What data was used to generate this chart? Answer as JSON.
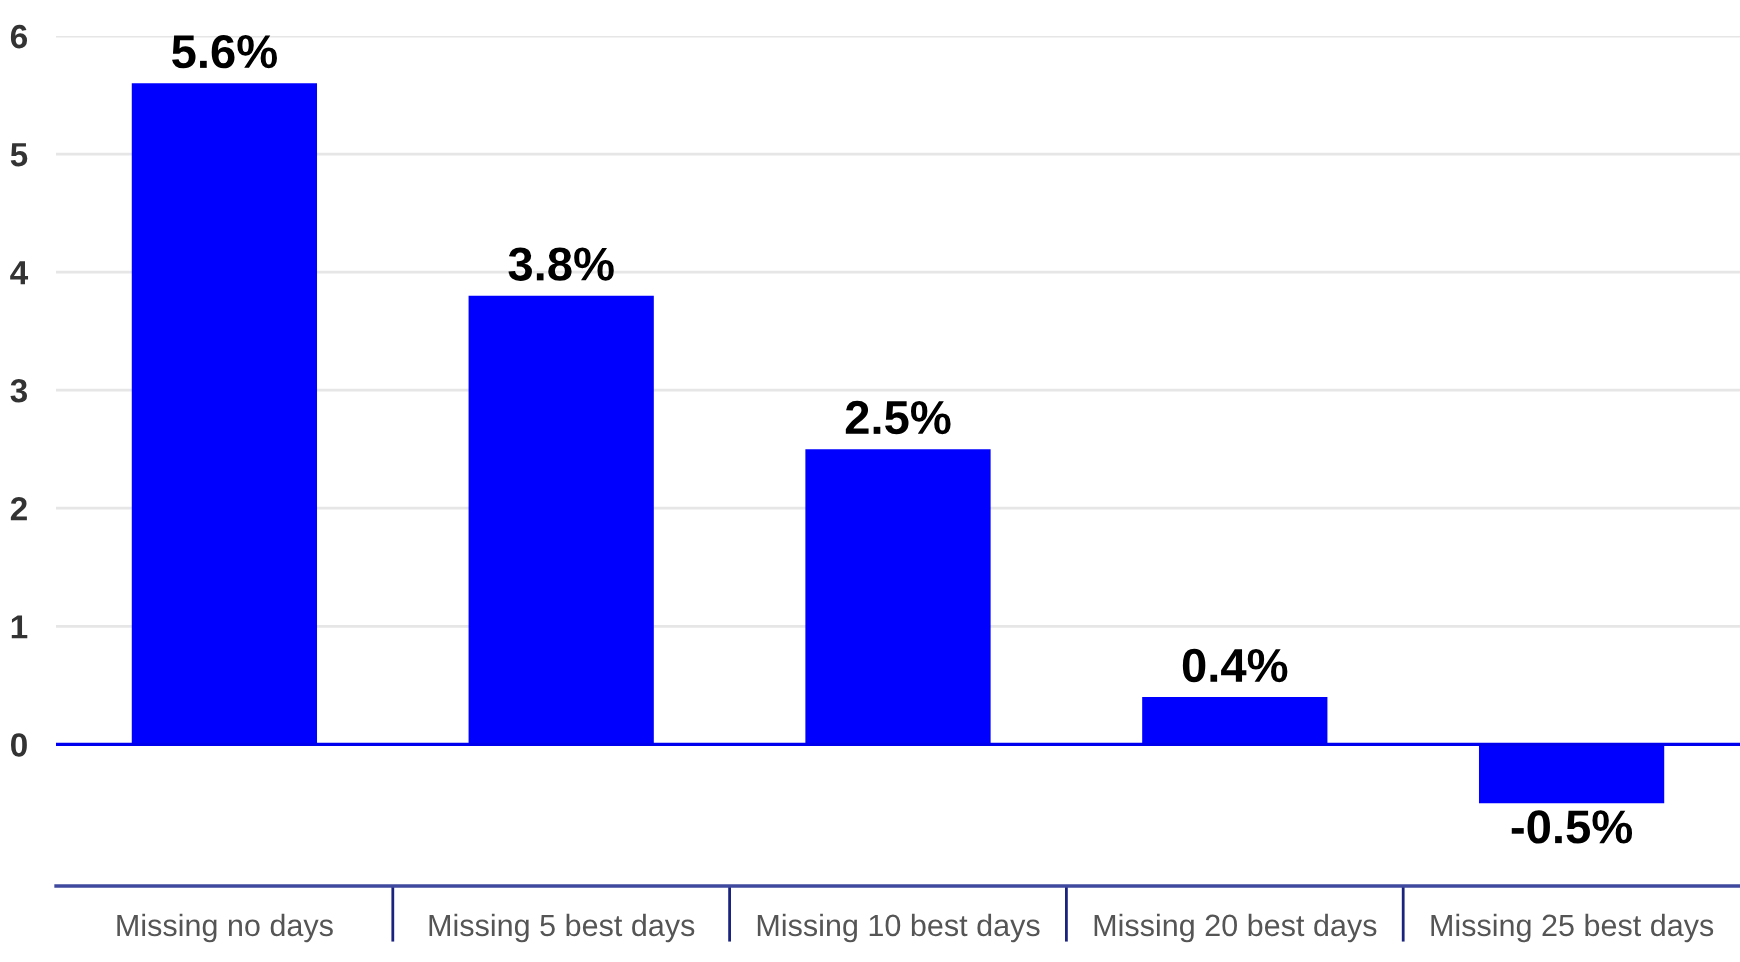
{
  "chart_data": {
    "type": "bar",
    "categories": [
      "Missing no days",
      "Missing 5 best days",
      "Missing 10 best days",
      "Missing 20 best days",
      "Missing 25 best days"
    ],
    "values": [
      5.6,
      3.8,
      2.5,
      0.4,
      -0.5
    ],
    "value_labels": [
      "5.6%",
      "3.8%",
      "2.5%",
      "0.4%",
      "-0.5%"
    ],
    "color": "#0000ff",
    "ylim": [
      -1.2,
      6
    ],
    "yticks": [
      0,
      1,
      2,
      3,
      4,
      5,
      6
    ],
    "grid": "y",
    "ref_lines": [
      {
        "axis": "y",
        "value": 0,
        "color": "#0000ee"
      }
    ]
  }
}
